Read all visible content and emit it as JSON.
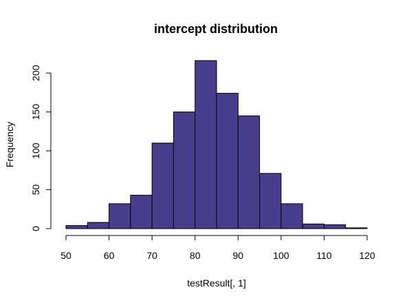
{
  "chart_data": {
    "type": "bar",
    "title": "intercept distribution",
    "xlabel": "testResult[, 1]",
    "ylabel": "Frequency",
    "bins": [
      {
        "from": 50,
        "to": 55,
        "count": 4
      },
      {
        "from": 55,
        "to": 60,
        "count": 8
      },
      {
        "from": 60,
        "to": 65,
        "count": 32
      },
      {
        "from": 65,
        "to": 70,
        "count": 43
      },
      {
        "from": 70,
        "to": 75,
        "count": 110
      },
      {
        "from": 75,
        "to": 80,
        "count": 150
      },
      {
        "from": 80,
        "to": 85,
        "count": 216
      },
      {
        "from": 85,
        "to": 90,
        "count": 174
      },
      {
        "from": 90,
        "to": 95,
        "count": 145
      },
      {
        "from": 95,
        "to": 100,
        "count": 71
      },
      {
        "from": 100,
        "to": 105,
        "count": 32
      },
      {
        "from": 105,
        "to": 110,
        "count": 6
      },
      {
        "from": 110,
        "to": 115,
        "count": 5
      },
      {
        "from": 115,
        "to": 120,
        "count": 1
      }
    ],
    "xlim": [
      50,
      120
    ],
    "ylim": [
      0,
      216
    ],
    "x_ticks": [
      "50",
      "60",
      "70",
      "80",
      "90",
      "100",
      "110",
      "120"
    ],
    "y_ticks": [
      "0",
      "50",
      "100",
      "150",
      "200"
    ],
    "bar_color": "#483D8B",
    "grid": false,
    "legend": "none"
  }
}
